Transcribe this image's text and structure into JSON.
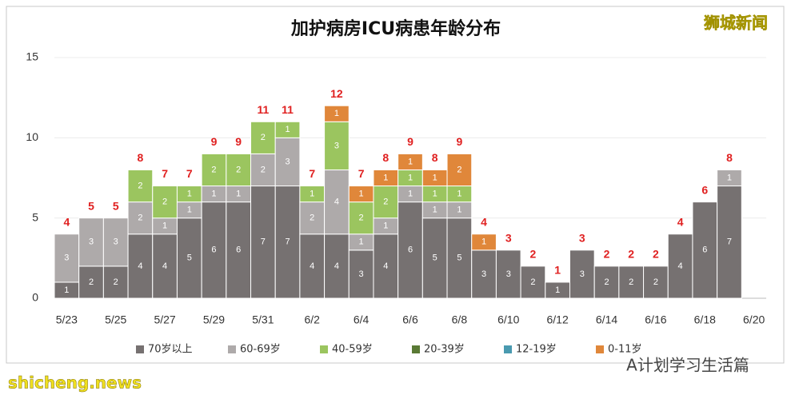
{
  "chart_data": {
    "type": "stacked_bar",
    "title": "加护病房ICU病患年龄分布",
    "categories": [
      "5/23",
      null,
      "5/25",
      null,
      "5/27",
      null,
      "5/29",
      null,
      "5/31",
      null,
      "6/2",
      null,
      "6/4",
      null,
      "6/6",
      null,
      "6/8",
      null,
      "6/10",
      null,
      "6/12",
      null,
      "6/14",
      null,
      "6/16",
      null,
      "6/18",
      null,
      "6/20"
    ],
    "series": [
      {
        "name": "70岁以上",
        "color": "#767171",
        "values": [
          1,
          2,
          2,
          4,
          4,
          5,
          6,
          6,
          7,
          7,
          4,
          4,
          3,
          4,
          6,
          5,
          5,
          3,
          3,
          2,
          1,
          3,
          2,
          2,
          2,
          4,
          6,
          7,
          null
        ]
      },
      {
        "name": "60-69岁",
        "color": "#aeaaaa",
        "values": [
          3,
          3,
          3,
          2,
          1,
          1,
          1,
          1,
          2,
          3,
          2,
          4,
          1,
          1,
          1,
          1,
          1,
          null,
          null,
          null,
          null,
          null,
          null,
          null,
          null,
          null,
          null,
          1,
          null
        ]
      },
      {
        "name": "40-59岁",
        "color": "#9bc55f",
        "values": [
          null,
          null,
          null,
          2,
          2,
          1,
          2,
          2,
          2,
          1,
          1,
          3,
          2,
          2,
          1,
          1,
          1,
          null,
          null,
          null,
          null,
          null,
          null,
          null,
          null,
          null,
          null,
          null,
          null
        ]
      },
      {
        "name": "20-39岁",
        "color": "#5a7a35",
        "values": [
          null,
          null,
          null,
          null,
          null,
          null,
          null,
          null,
          null,
          null,
          null,
          null,
          null,
          null,
          null,
          null,
          null,
          null,
          null,
          null,
          null,
          null,
          null,
          null,
          null,
          null,
          null,
          null,
          null
        ]
      },
      {
        "name": "12-19岁",
        "color": "#4a9ab0",
        "values": [
          null,
          null,
          null,
          null,
          null,
          null,
          null,
          null,
          null,
          null,
          null,
          null,
          null,
          null,
          null,
          null,
          null,
          null,
          null,
          null,
          null,
          null,
          null,
          null,
          null,
          null,
          null,
          null,
          null
        ]
      },
      {
        "name": "0-11岁",
        "color": "#e0873a",
        "values": [
          null,
          null,
          null,
          null,
          null,
          null,
          null,
          null,
          null,
          null,
          null,
          1,
          1,
          1,
          1,
          1,
          2,
          1,
          null,
          null,
          null,
          null,
          null,
          null,
          null,
          null,
          null,
          null,
          null
        ]
      }
    ],
    "totals": [
      4,
      5,
      5,
      8,
      7,
      7,
      9,
      9,
      11,
      11,
      7,
      12,
      7,
      8,
      9,
      8,
      9,
      4,
      3,
      2,
      1,
      3,
      2,
      2,
      2,
      4,
      6,
      8,
      null
    ],
    "ylim": [
      0,
      15
    ],
    "yticks": [
      0,
      5,
      10,
      15
    ],
    "grid": true
  },
  "watermarks": {
    "top": "狮城新闻",
    "bottom_left": "shicheng.news",
    "bottom_right": "A计划学习生活篇"
  }
}
